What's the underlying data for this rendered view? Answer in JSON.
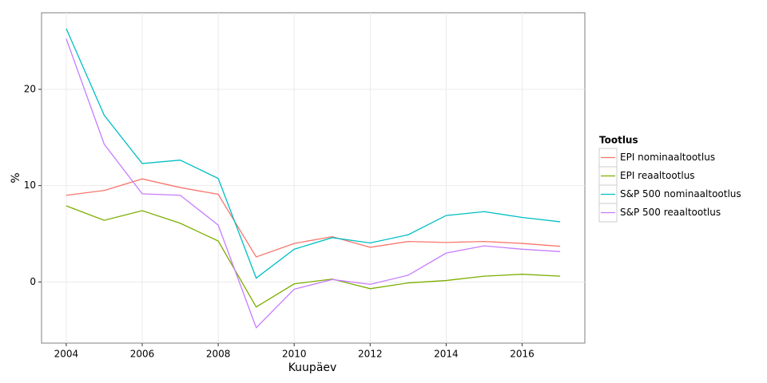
{
  "chart_data": {
    "type": "line",
    "x_label": "Kuupäev",
    "y_label": "%",
    "legend_title": "Tootlus",
    "x": [
      2004,
      2005,
      2006,
      2007,
      2008,
      2009,
      2010,
      2011,
      2012,
      2013,
      2014,
      2015,
      2016,
      2017
    ],
    "series": [
      {
        "name": "EPI nominaaltootlus",
        "color": "#F8766D",
        "values": [
          9.0,
          9.5,
          10.7,
          9.8,
          9.1,
          2.6,
          4.0,
          4.7,
          3.6,
          4.2,
          4.1,
          4.2,
          4.0,
          3.7
        ]
      },
      {
        "name": "EPI reaaltootlus",
        "color": "#7CAE00",
        "values": [
          7.9,
          6.4,
          7.4,
          6.1,
          4.25,
          -2.6,
          -0.2,
          0.3,
          -0.7,
          -0.1,
          0.15,
          0.6,
          0.8,
          0.6
        ]
      },
      {
        "name": "S&P 500 nominaaltootlus",
        "color": "#00BFC4",
        "values": [
          26.3,
          17.3,
          12.3,
          12.65,
          10.75,
          0.4,
          3.4,
          4.6,
          4.05,
          4.9,
          6.9,
          7.3,
          6.7,
          6.25
        ]
      },
      {
        "name": "S&P 500 reaaltootlus",
        "color": "#C77CFF",
        "values": [
          25.25,
          14.3,
          9.15,
          9.0,
          5.9,
          -4.75,
          -0.75,
          0.25,
          -0.25,
          0.7,
          3.0,
          3.75,
          3.4,
          3.15
        ]
      }
    ],
    "xlim": [
      2003.35,
      2017.65
    ],
    "xticks": [
      2004,
      2006,
      2008,
      2010,
      2012,
      2014,
      2016
    ],
    "ylim": [
      -6.35,
      27.95
    ],
    "yticks": [
      0,
      10,
      20
    ],
    "grid": true,
    "legend": "right"
  }
}
